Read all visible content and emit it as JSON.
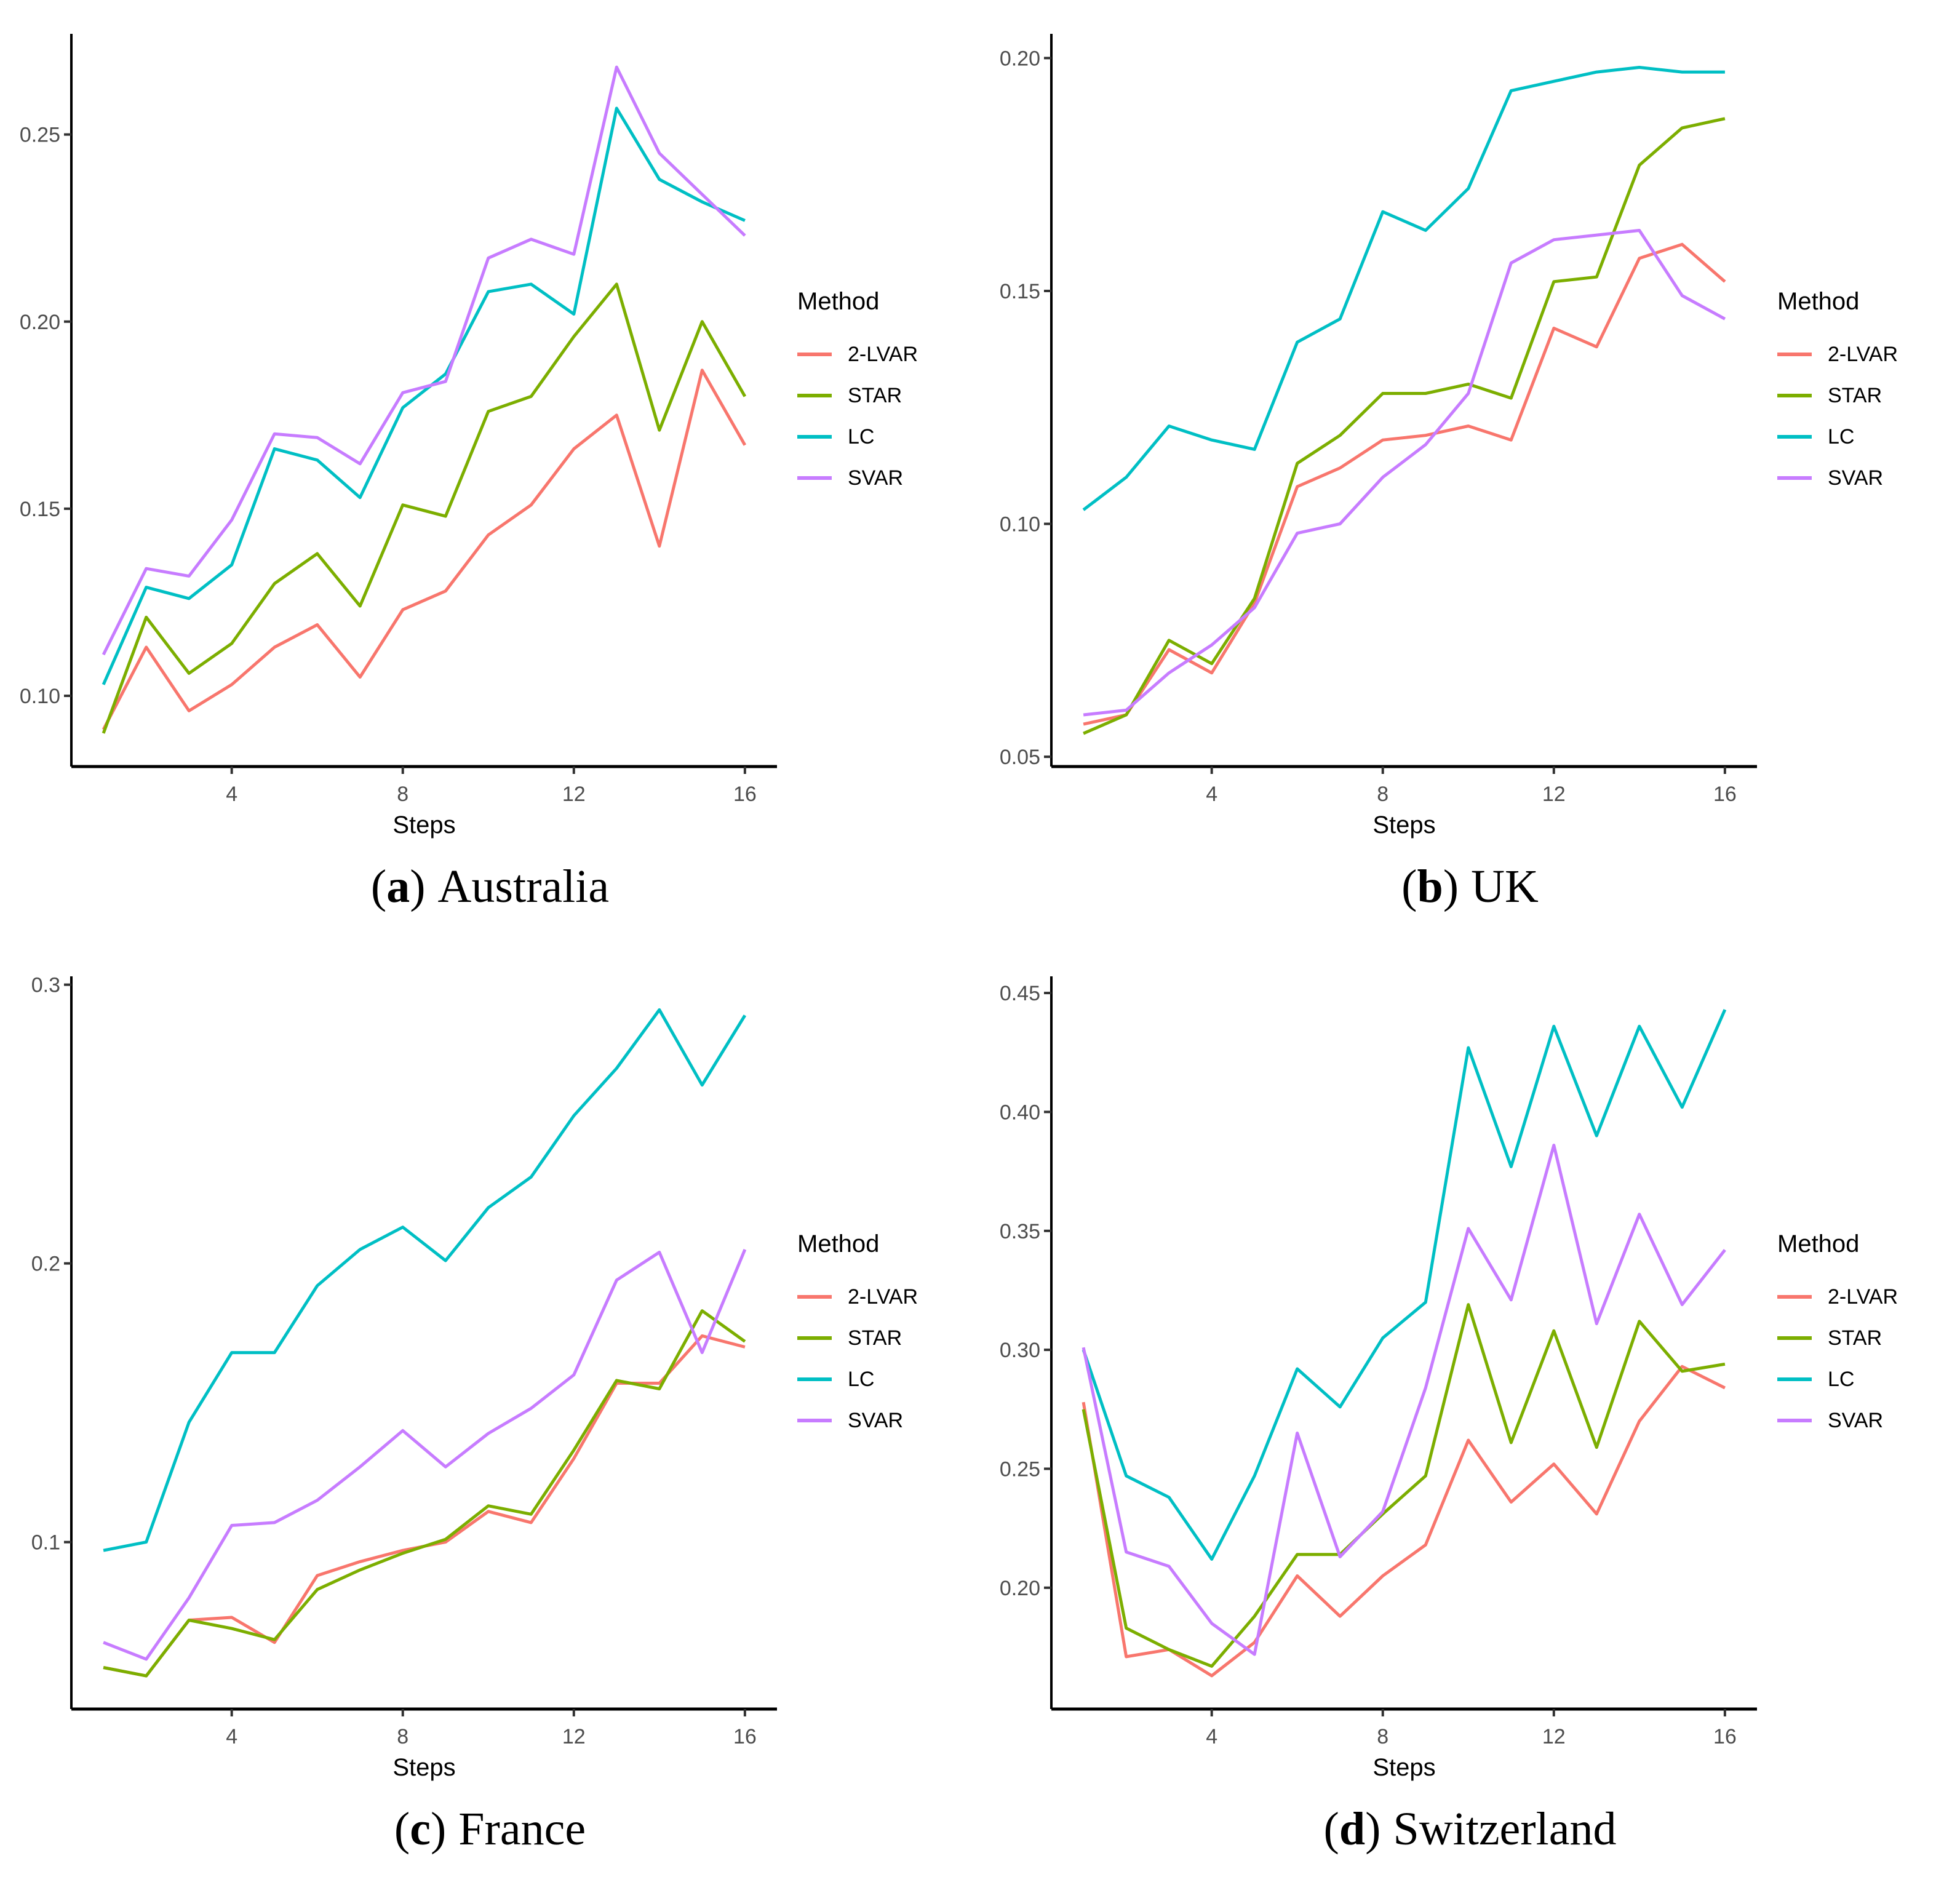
{
  "strings": {
    "open": "(",
    "close": ")"
  },
  "legend": {
    "title": "Method",
    "items": [
      {
        "label": "2-LVAR",
        "color": "#F8766D"
      },
      {
        "label": "STAR",
        "color": "#7CAE00"
      },
      {
        "label": "LC",
        "color": "#00BFC4"
      },
      {
        "label": "SVAR",
        "color": "#C77CFF"
      }
    ],
    "position": "right"
  },
  "colors": {
    "axis_line": "#000000",
    "tick_mark": "#333333",
    "tick_label": "#4D4D4D",
    "axis_title": "#000000",
    "background": "#ffffff"
  },
  "chart_data": [
    {
      "type": "line",
      "caption_letter": "a",
      "caption_name": "Australia",
      "xlabel": "Steps",
      "ylabel": "",
      "x": [
        1,
        2,
        3,
        4,
        5,
        6,
        7,
        8,
        9,
        10,
        11,
        12,
        13,
        14,
        15,
        16
      ],
      "x_ticks": [
        4,
        8,
        12,
        16
      ],
      "xlim": [
        0.25,
        16.75
      ],
      "ylim": [
        0.0811,
        0.2769
      ],
      "y_ticks": [
        0.1,
        0.15,
        0.2,
        0.25
      ],
      "y_tick_labels": [
        "0.10",
        "0.15",
        "0.20",
        "0.25"
      ],
      "grid": false,
      "legend_position": "right",
      "series": [
        {
          "name": "2-LVAR",
          "color": "#F8766D",
          "values": [
            0.091,
            0.113,
            0.096,
            0.103,
            0.113,
            0.119,
            0.105,
            0.123,
            0.128,
            0.143,
            0.151,
            0.166,
            0.175,
            0.14,
            0.187,
            0.167
          ]
        },
        {
          "name": "STAR",
          "color": "#7CAE00",
          "values": [
            0.09,
            0.121,
            0.106,
            0.114,
            0.13,
            0.138,
            0.124,
            0.151,
            0.148,
            0.176,
            0.18,
            0.196,
            0.21,
            0.171,
            0.2,
            0.18
          ]
        },
        {
          "name": "LC",
          "color": "#00BFC4",
          "values": [
            0.103,
            0.129,
            0.126,
            0.135,
            0.166,
            0.163,
            0.153,
            0.177,
            0.186,
            0.208,
            0.21,
            0.202,
            0.257,
            0.238,
            0.232,
            0.227
          ]
        },
        {
          "name": "SVAR",
          "color": "#C77CFF",
          "values": [
            0.111,
            0.134,
            0.132,
            0.147,
            0.17,
            0.169,
            0.162,
            0.181,
            0.184,
            0.217,
            0.222,
            0.218,
            0.268,
            0.245,
            0.234,
            0.223
          ]
        }
      ]
    },
    {
      "type": "line",
      "caption_letter": "b",
      "caption_name": "UK",
      "xlabel": "Steps",
      "ylabel": "",
      "x": [
        1,
        2,
        3,
        4,
        5,
        6,
        7,
        8,
        9,
        10,
        11,
        12,
        13,
        14,
        15,
        16
      ],
      "x_ticks": [
        4,
        8,
        12,
        16
      ],
      "xlim": [
        0.25,
        16.75
      ],
      "ylim": [
        0.0479,
        0.2052
      ],
      "y_ticks": [
        0.05,
        0.1,
        0.15,
        0.2
      ],
      "y_tick_labels": [
        "0.05",
        "0.10",
        "0.15",
        "0.20"
      ],
      "grid": false,
      "legend_position": "right",
      "series": [
        {
          "name": "2-LVAR",
          "color": "#F8766D",
          "values": [
            0.057,
            0.059,
            0.073,
            0.068,
            0.083,
            0.108,
            0.112,
            0.118,
            0.119,
            0.121,
            0.118,
            0.142,
            0.138,
            0.157,
            0.16,
            0.152
          ]
        },
        {
          "name": "STAR",
          "color": "#7CAE00",
          "values": [
            0.055,
            0.059,
            0.075,
            0.07,
            0.084,
            0.113,
            0.119,
            0.128,
            0.128,
            0.13,
            0.127,
            0.152,
            0.153,
            0.177,
            0.185,
            0.187
          ]
        },
        {
          "name": "LC",
          "color": "#00BFC4",
          "values": [
            0.103,
            0.11,
            0.121,
            0.118,
            0.116,
            0.139,
            0.144,
            0.167,
            0.163,
            0.172,
            0.193,
            0.195,
            0.197,
            0.198,
            0.197,
            0.197
          ]
        },
        {
          "name": "SVAR",
          "color": "#C77CFF",
          "values": [
            0.059,
            0.06,
            0.068,
            0.074,
            0.082,
            0.098,
            0.1,
            0.11,
            0.117,
            0.128,
            0.156,
            0.161,
            0.162,
            0.163,
            0.149,
            0.144
          ]
        }
      ]
    },
    {
      "type": "line",
      "caption_letter": "c",
      "caption_name": "France",
      "xlabel": "Steps",
      "ylabel": "",
      "x": [
        1,
        2,
        3,
        4,
        5,
        6,
        7,
        8,
        9,
        10,
        11,
        12,
        13,
        14,
        15,
        16
      ],
      "x_ticks": [
        4,
        8,
        12,
        16
      ],
      "xlim": [
        0.25,
        16.75
      ],
      "ylim": [
        0.0401,
        0.303
      ],
      "y_ticks": [
        0.1,
        0.2,
        0.3
      ],
      "y_tick_labels": [
        "0.1",
        "0.2",
        "0.3"
      ],
      "grid": false,
      "legend_position": "right",
      "series": [
        {
          "name": "2-LVAR",
          "color": "#F8766D",
          "values": [
            0.055,
            0.052,
            0.072,
            0.073,
            0.064,
            0.088,
            0.093,
            0.097,
            0.1,
            0.111,
            0.107,
            0.13,
            0.157,
            0.157,
            0.174,
            0.17
          ]
        },
        {
          "name": "STAR",
          "color": "#7CAE00",
          "values": [
            0.055,
            0.052,
            0.072,
            0.069,
            0.065,
            0.083,
            0.09,
            0.096,
            0.101,
            0.113,
            0.11,
            0.133,
            0.158,
            0.155,
            0.183,
            0.172
          ]
        },
        {
          "name": "LC",
          "color": "#00BFC4",
          "values": [
            0.097,
            0.1,
            0.143,
            0.168,
            0.168,
            0.192,
            0.205,
            0.213,
            0.201,
            0.22,
            0.231,
            0.253,
            0.27,
            0.291,
            0.264,
            0.289
          ]
        },
        {
          "name": "SVAR",
          "color": "#C77CFF",
          "values": [
            0.064,
            0.058,
            0.08,
            0.106,
            0.107,
            0.115,
            0.127,
            0.14,
            0.127,
            0.139,
            0.148,
            0.16,
            0.194,
            0.204,
            0.168,
            0.205
          ]
        }
      ]
    },
    {
      "type": "line",
      "caption_letter": "d",
      "caption_name": "Switzerland",
      "xlabel": "Steps",
      "ylabel": "",
      "x": [
        1,
        2,
        3,
        4,
        5,
        6,
        7,
        8,
        9,
        10,
        11,
        12,
        13,
        14,
        15,
        16
      ],
      "x_ticks": [
        4,
        8,
        12,
        16
      ],
      "xlim": [
        0.25,
        16.75
      ],
      "ylim": [
        0.149,
        0.457
      ],
      "y_ticks": [
        0.2,
        0.25,
        0.3,
        0.35,
        0.4,
        0.45
      ],
      "y_tick_labels": [
        "0.20",
        "0.25",
        "0.30",
        "0.35",
        "0.40",
        "0.45"
      ],
      "grid": false,
      "legend_position": "right",
      "series": [
        {
          "name": "2-LVAR",
          "color": "#F8766D",
          "values": [
            0.278,
            0.171,
            0.174,
            0.163,
            0.177,
            0.205,
            0.188,
            0.205,
            0.218,
            0.262,
            0.236,
            0.252,
            0.231,
            0.27,
            0.293,
            0.284
          ]
        },
        {
          "name": "STAR",
          "color": "#7CAE00",
          "values": [
            0.275,
            0.183,
            0.174,
            0.167,
            0.188,
            0.214,
            0.214,
            0.231,
            0.247,
            0.319,
            0.261,
            0.308,
            0.259,
            0.312,
            0.291,
            0.294
          ]
        },
        {
          "name": "LC",
          "color": "#00BFC4",
          "values": [
            0.3,
            0.247,
            0.238,
            0.212,
            0.247,
            0.292,
            0.276,
            0.305,
            0.32,
            0.427,
            0.377,
            0.436,
            0.39,
            0.436,
            0.402,
            0.443
          ]
        },
        {
          "name": "SVAR",
          "color": "#C77CFF",
          "values": [
            0.301,
            0.215,
            0.209,
            0.185,
            0.172,
            0.265,
            0.213,
            0.232,
            0.284,
            0.351,
            0.321,
            0.386,
            0.311,
            0.357,
            0.319,
            0.342
          ]
        }
      ]
    }
  ]
}
